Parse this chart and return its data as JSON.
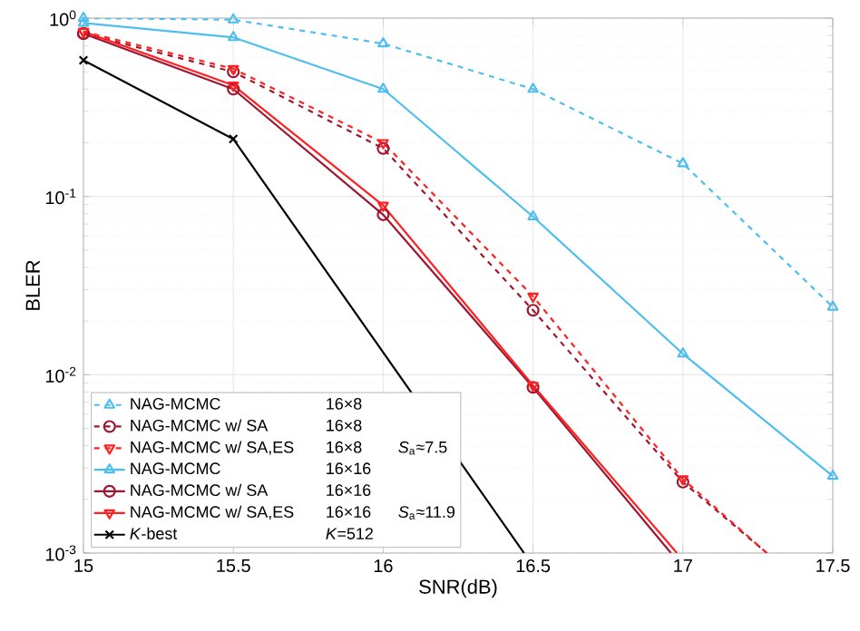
{
  "chart_data": {
    "type": "line",
    "xlabel": "SNR(dB)",
    "ylabel": "BLER",
    "log": true,
    "grid": true,
    "legend": "bottom left",
    "xlim": [
      15,
      17.5
    ],
    "xticks": [
      15,
      15.5,
      16,
      16.5,
      17,
      17.5
    ],
    "ylim": [
      0.001,
      1
    ],
    "yticks": [
      {
        "value": 0.001,
        "label": "10$^{-3}$"
      },
      {
        "value": 0.01,
        "label": "10$^{-2}$"
      },
      {
        "value": 0.1,
        "label": "10$^{-1}$"
      },
      {
        "value": 1,
        "label": "10$^{0}$"
      }
    ],
    "annotations": [
      "16×8",
      "16×8",
      "16×8",
      "*S*$_{a}$≈7.5",
      "16×16",
      "16×16",
      "16×16",
      "*S*$_{a}$≈11.9",
      "*K*=512"
    ],
    "series": [
      {
        "name": "NAG-MCMC",
        "color": "#4dbeee",
        "line_style": "dashed",
        "marker": "triangle",
        "x": [
          15,
          15.5,
          16,
          16.5,
          17,
          17.5
        ],
        "values": [
          1.0,
          0.98,
          0.72,
          0.4,
          0.153,
          0.024
        ]
      },
      {
        "name": "NAG-MCMC w/ SA",
        "color": "#a2142f",
        "line_style": "dashed",
        "marker": "circle",
        "x": [
          15,
          15.5,
          16,
          16.5,
          17,
          17.28
        ],
        "values": [
          0.82,
          0.5,
          0.186,
          0.023,
          0.0025,
          0.001
        ]
      },
      {
        "name": "NAG-MCMC w/ SA,ES",
        "color": "#ff2020",
        "line_style": "dashed",
        "marker": "triangle-down",
        "x": [
          15,
          15.5,
          16,
          16.5,
          17,
          17.28
        ],
        "values": [
          0.84,
          0.52,
          0.2,
          0.0275,
          0.0026,
          0.001
        ]
      },
      {
        "name": "NAG-MCMC",
        "color": "#4dbeee",
        "line_style": "solid",
        "marker": "triangle",
        "x": [
          15,
          15.5,
          16,
          16.5,
          17,
          17.5
        ],
        "values": [
          0.94,
          0.78,
          0.4,
          0.077,
          0.0131,
          0.0027
        ]
      },
      {
        "name": "NAG-MCMC w/ SA",
        "color": "#a2142f",
        "line_style": "solid",
        "marker": "circle",
        "x": [
          15,
          15.5,
          16,
          16.5,
          16.96
        ],
        "values": [
          0.82,
          0.4,
          0.079,
          0.0085,
          0.001
        ]
      },
      {
        "name": "NAG-MCMC w/ SA,ES",
        "color": "#ff2020",
        "line_style": "solid",
        "marker": "triangle-down",
        "x": [
          15,
          15.5,
          16,
          16.5,
          16.98
        ],
        "values": [
          0.84,
          0.42,
          0.089,
          0.0087,
          0.001
        ]
      },
      {
        "name": "*K*-best",
        "color": "#000000",
        "line_style": "solid",
        "marker": "cross",
        "x": [
          15,
          15.5,
          16.47
        ],
        "values": [
          0.58,
          0.21,
          0.001
        ]
      }
    ]
  }
}
